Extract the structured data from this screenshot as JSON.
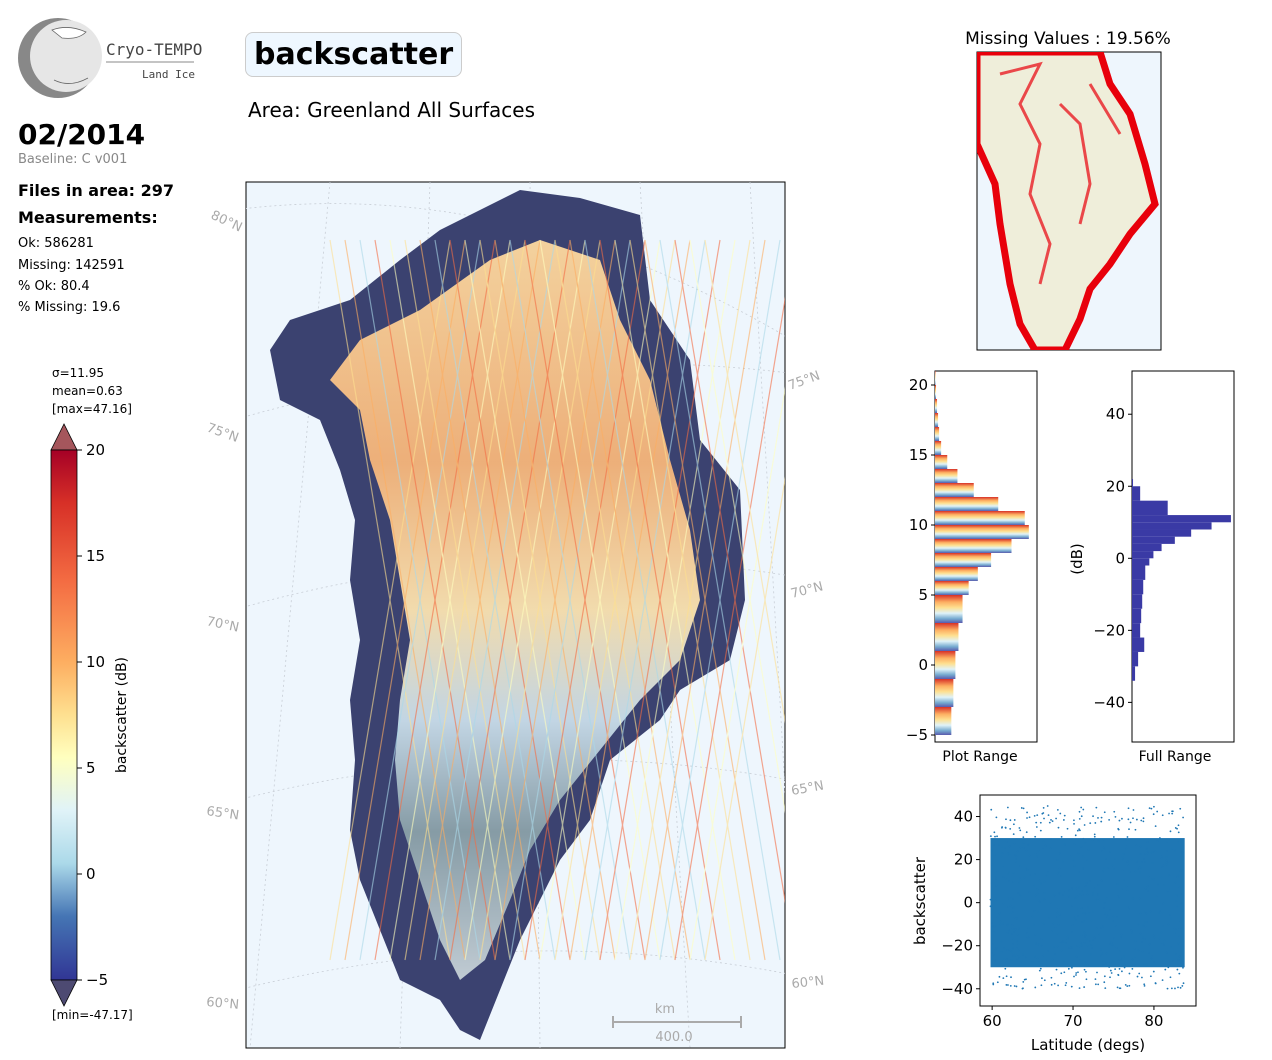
{
  "logo": {
    "title": "Cryo-TEMPO",
    "subtitle": "Land Ice"
  },
  "header": {
    "date": "02/2014",
    "baseline": "Baseline: C v001",
    "variable": "backscatter",
    "area": "Area: Greenland All Surfaces"
  },
  "stats": {
    "files": "Files in area: 297",
    "measurements_heading": "Measurements:",
    "ok": "Ok: 586281",
    "missing": "Missing: 142591",
    "pct_ok": "% Ok: 80.4",
    "pct_missing": "% Missing: 19.6"
  },
  "colorbar": {
    "sigma": "σ=11.95",
    "mean": "mean=0.63",
    "max": "[max=47.16]",
    "min": "[min=-47.17]",
    "label": "backscatter (dB)",
    "ticks": [
      "20",
      "15",
      "10",
      "5",
      "0",
      "−5"
    ],
    "colors": {
      "dark_red": "#a50026",
      "red": "#d73027",
      "orange": "#fdae61",
      "yellow": "#ffffbf",
      "light_blue": "#abd9e9",
      "blue": "#4575b4",
      "dark_blue": "#313695"
    }
  },
  "map": {
    "lat_labels_left": [
      "80°N",
      "75°N",
      "70°N",
      "65°N",
      "60°N"
    ],
    "lat_labels_right": [
      "75°N",
      "70°N",
      "65°N",
      "60°N"
    ],
    "scale_unit": "km",
    "scale_value": "400.0",
    "ocean_color": "#eef6fd"
  },
  "missing_map": {
    "title": "Missing Values : 19.56%",
    "color": "#e8000b"
  },
  "chart_data": [
    {
      "type": "bar",
      "name": "plot_range_histogram",
      "xlabel": "Plot Range",
      "ylim": [
        -5.5,
        21
      ],
      "yticks": [
        "−5",
        "0",
        "5",
        "10",
        "15",
        "20"
      ],
      "bins": [
        -5,
        -3,
        -1,
        1,
        3,
        5,
        6,
        7,
        8,
        9,
        10,
        11,
        12,
        13,
        14,
        15,
        16,
        17,
        18,
        19,
        20
      ],
      "values": [
        0.16,
        0.18,
        0.2,
        0.23,
        0.27,
        0.33,
        0.42,
        0.55,
        0.75,
        0.92,
        0.88,
        0.62,
        0.38,
        0.22,
        0.12,
        0.06,
        0.04,
        0.03,
        0.02,
        0.01,
        0.005
      ]
    },
    {
      "type": "bar",
      "name": "full_range_histogram",
      "xlabel": "Full Range",
      "ylabel": "(dB)",
      "ylim": [
        -51,
        52
      ],
      "yticks": [
        "−40",
        "−20",
        "0",
        "20",
        "40"
      ],
      "bins": [
        -34,
        -30,
        -26,
        -22,
        -18,
        -14,
        -10,
        -6,
        -2,
        0,
        2,
        4,
        6,
        8,
        10,
        12,
        16,
        20
      ],
      "values": [
        0.03,
        0.06,
        0.12,
        0.08,
        0.09,
        0.1,
        0.11,
        0.13,
        0.17,
        0.21,
        0.29,
        0.42,
        0.58,
        0.78,
        0.97,
        0.35,
        0.08,
        0.01
      ],
      "color": "#3a3aa5"
    },
    {
      "type": "scatter",
      "name": "backscatter_vs_latitude",
      "xlabel": "Latitude (degs)",
      "ylabel": "backscatter",
      "xlim": [
        58.5,
        85.2
      ],
      "ylim": [
        -48,
        50
      ],
      "xticks": [
        "60",
        "70",
        "80"
      ],
      "yticks": [
        "−40",
        "−20",
        "0",
        "20",
        "40"
      ],
      "x_range": [
        59.8,
        83.8
      ],
      "y_range": [
        -40,
        45
      ],
      "color": "#1f77b4"
    }
  ]
}
